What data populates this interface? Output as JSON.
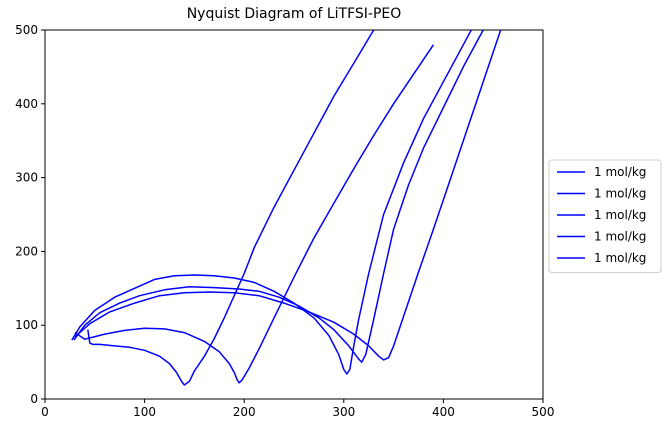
{
  "chart_data": {
    "type": "line",
    "title": "Nyquist Diagram of LiTFSI-PEO",
    "xlabel": "",
    "ylabel": "",
    "xlim": [
      0,
      500
    ],
    "ylim": [
      0,
      500
    ],
    "xticks": [
      "0",
      "100",
      "200",
      "300",
      "400",
      "500"
    ],
    "yticks": [
      "0",
      "100",
      "200",
      "300",
      "400",
      "500"
    ],
    "grid": false,
    "legend_position": "center-right-outside",
    "color": "#0000ff",
    "series": [
      {
        "name": "1 mol/kg",
        "x": [
          43,
          44,
          45,
          48,
          55,
          70,
          85,
          100,
          115,
          125,
          132,
          137,
          140,
          145,
          150,
          160,
          170,
          180,
          190,
          200,
          210,
          230,
          250,
          270,
          290,
          310,
          330,
          360
        ],
        "y": [
          94,
          85,
          76,
          74,
          74,
          72,
          70,
          66,
          58,
          48,
          36,
          24,
          19,
          24,
          38,
          58,
          82,
          110,
          140,
          170,
          205,
          260,
          310,
          360,
          410,
          455,
          500,
          560
        ]
      },
      {
        "name": "1 mol/kg",
        "x": [
          30,
          40,
          60,
          80,
          100,
          120,
          140,
          160,
          175,
          185,
          190,
          193,
          195,
          198,
          205,
          215,
          230,
          250,
          270,
          290,
          310,
          330,
          350,
          370,
          390
        ],
        "y": [
          90,
          81,
          88,
          93,
          96,
          95,
          90,
          78,
          64,
          48,
          36,
          26,
          22,
          26,
          42,
          68,
          110,
          165,
          218,
          265,
          312,
          357,
          400,
          440,
          480
        ]
      },
      {
        "name": "1 mol/kg",
        "x": [
          27,
          35,
          50,
          70,
          90,
          110,
          130,
          150,
          170,
          190,
          210,
          230,
          250,
          270,
          285,
          295,
          300,
          303,
          306,
          310,
          315,
          325,
          340,
          360,
          380,
          400,
          420,
          440
        ],
        "y": [
          80,
          98,
          120,
          138,
          150,
          162,
          167,
          168,
          167,
          164,
          158,
          146,
          130,
          110,
          86,
          60,
          40,
          34,
          40,
          72,
          108,
          170,
          250,
          320,
          380,
          430,
          480,
          530
        ]
      },
      {
        "name": "1 mol/kg",
        "x": [
          29,
          40,
          55,
          75,
          95,
          120,
          145,
          170,
          195,
          215,
          235,
          255,
          275,
          290,
          305,
          315,
          318,
          322,
          330,
          340,
          350,
          365,
          380,
          400,
          420,
          440
        ],
        "y": [
          80,
          100,
          117,
          130,
          140,
          148,
          152,
          151,
          149,
          146,
          138,
          126,
          110,
          94,
          72,
          54,
          50,
          60,
          108,
          170,
          230,
          290,
          340,
          395,
          450,
          500
        ]
      },
      {
        "name": "1 mol/kg",
        "x": [
          30,
          45,
          65,
          90,
          115,
          140,
          165,
          190,
          215,
          240,
          265,
          290,
          310,
          325,
          335,
          340,
          345,
          350,
          360,
          375,
          390,
          405,
          420,
          435,
          450,
          460
        ],
        "y": [
          84,
          102,
          118,
          130,
          140,
          144,
          145,
          144,
          140,
          130,
          118,
          104,
          88,
          72,
          58,
          53,
          56,
          72,
          112,
          172,
          230,
          290,
          350,
          410,
          470,
          510
        ]
      }
    ]
  }
}
